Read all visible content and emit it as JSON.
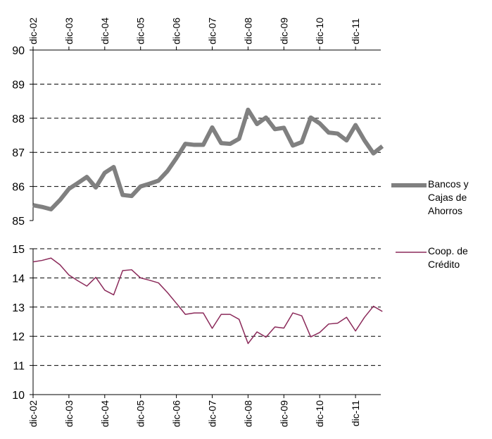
{
  "chart_data": [
    {
      "type": "line",
      "ylim": [
        85,
        90
      ],
      "yticks": [
        85,
        86,
        87,
        88,
        89,
        90
      ],
      "grid": true,
      "categories": [
        "dic-02",
        null,
        null,
        null,
        "dic-03",
        null,
        null,
        null,
        "dic-04",
        null,
        null,
        null,
        "dic-05",
        null,
        null,
        null,
        "dic-06",
        null,
        null,
        null,
        "dic-07",
        null,
        null,
        null,
        "dic-08",
        null,
        null,
        null,
        "dic-09",
        null,
        null,
        null,
        "dic-10",
        null,
        null,
        null,
        "dic-11",
        null,
        null,
        null
      ],
      "series": [
        {
          "name": "Bancos y Cajas de Ahorros",
          "color": "#808080",
          "values": [
            85.45,
            85.4,
            85.33,
            85.6,
            85.93,
            86.1,
            86.28,
            85.97,
            86.4,
            86.57,
            85.75,
            85.72,
            86.0,
            86.08,
            86.17,
            86.45,
            86.83,
            87.25,
            87.22,
            87.22,
            87.73,
            87.27,
            87.25,
            87.4,
            88.25,
            87.83,
            88.02,
            87.68,
            87.72,
            87.2,
            87.3,
            88.02,
            87.85,
            87.58,
            87.55,
            87.35,
            87.8,
            87.35,
            86.97,
            87.18
          ]
        }
      ]
    },
    {
      "type": "line",
      "ylim": [
        10,
        15
      ],
      "yticks": [
        10,
        11,
        12,
        13,
        14,
        15
      ],
      "grid": true,
      "categories": [
        "dic-02",
        null,
        null,
        null,
        "dic-03",
        null,
        null,
        null,
        "dic-04",
        null,
        null,
        null,
        "dic-05",
        null,
        null,
        null,
        "dic-06",
        null,
        null,
        null,
        "dic-07",
        null,
        null,
        null,
        "dic-08",
        null,
        null,
        null,
        "dic-09",
        null,
        null,
        null,
        "dic-10",
        null,
        null,
        null,
        "dic-11",
        null,
        null,
        null
      ],
      "series": [
        {
          "name": "Coop. de Crédito",
          "color": "#8b2a5a",
          "values": [
            14.55,
            14.6,
            14.68,
            14.45,
            14.1,
            13.9,
            13.72,
            14.02,
            13.58,
            13.42,
            14.25,
            14.28,
            14.0,
            13.92,
            13.83,
            13.5,
            13.13,
            12.75,
            12.8,
            12.8,
            12.27,
            12.75,
            12.75,
            12.58,
            11.75,
            12.15,
            11.97,
            12.32,
            12.28,
            12.8,
            12.7,
            11.98,
            12.13,
            12.42,
            12.45,
            12.65,
            12.18,
            12.65,
            13.03,
            12.85
          ]
        }
      ]
    }
  ]
}
